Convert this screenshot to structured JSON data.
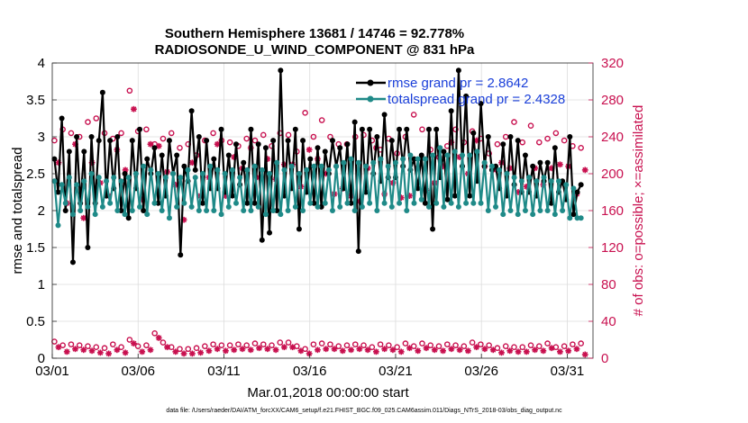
{
  "chart_data": {
    "type": "line",
    "title_line1": "Southern Hemisphere 13681 / 14746 = 92.778%",
    "title_line2": "RADIOSONDE_U_WIND_COMPONENT @ 831 hPa",
    "xlabel": "Mar.01,2018 00:00:00 start",
    "ylabel_left": "rmse and totalspread",
    "ylabel_right": "# of obs: o=possible; ×=assimilated",
    "xlim": [
      0,
      31.5
    ],
    "ylim_left": [
      0,
      4
    ],
    "ylim_right": [
      0,
      320
    ],
    "x_tick_values": [
      0,
      5,
      10,
      15,
      20,
      25,
      30
    ],
    "x_tick_labels": [
      "03/01",
      "03/06",
      "03/11",
      "03/16",
      "03/21",
      "03/26",
      "03/31"
    ],
    "y_left_ticks": [
      "0",
      "0.5",
      "1",
      "1.5",
      "2",
      "2.5",
      "3",
      "3.5",
      "4"
    ],
    "y_right_ticks": [
      "0",
      "40",
      "80",
      "120",
      "160",
      "200",
      "240",
      "280",
      "320"
    ],
    "series": [
      {
        "name": "rmse",
        "legend": "rmse grand pr = 2.8642",
        "color": "#000000",
        "values": [
          2.7,
          2.25,
          3.25,
          2.0,
          2.8,
          1.3,
          3.0,
          2.1,
          2.8,
          1.5,
          3.0,
          2.1,
          2.95,
          3.6,
          2.2,
          2.95,
          2.3,
          3.0,
          2.0,
          2.5,
          1.9,
          2.95,
          2.3,
          3.1,
          2.0,
          2.7,
          2.5,
          2.85,
          2.1,
          2.75,
          2.2,
          2.95,
          2.5,
          2.75,
          1.4,
          2.6,
          2.4,
          3.35,
          2.55,
          3.0,
          2.1,
          2.95,
          2.3,
          2.7,
          2.3,
          3.1,
          2.25,
          2.75,
          2.2,
          2.9,
          2.35,
          2.65,
          2.1,
          3.1,
          2.1,
          2.9,
          1.6,
          2.85,
          1.7,
          2.95,
          2.0,
          3.9,
          2.2,
          2.95,
          2.3,
          3.1,
          1.75,
          2.95,
          2.25,
          2.7,
          2.1,
          2.85,
          2.05,
          2.8,
          2.5,
          2.95,
          2.6,
          2.85,
          2.3,
          2.9,
          2.1,
          3.2,
          1.45,
          3.1,
          2.25,
          3.1,
          2.5,
          3.0,
          2.4,
          3.3,
          2.45,
          2.95,
          2.45,
          3.1,
          2.6,
          3.1,
          2.55,
          2.7,
          2.3,
          2.75,
          2.1,
          3.1,
          1.75,
          3.1,
          2.45,
          2.8,
          2.15,
          3.35,
          2.2,
          3.9,
          2.6,
          3.55,
          2.2,
          3.05,
          2.4,
          3.45,
          2.6,
          3.0,
          2.55,
          2.6,
          2.3,
          2.9,
          2.2,
          3.0,
          2.35,
          2.95,
          2.25,
          2.75,
          2.25,
          2.6,
          2.2,
          2.65,
          2.4,
          2.65,
          2.1,
          2.85,
          2.25,
          2.4,
          2.15,
          3.0,
          1.95,
          2.25,
          2.35
        ]
      },
      {
        "name": "totalspread",
        "legend": "totalspread grand pr = 2.4328",
        "color": "#1f8a88",
        "values": [
          2.4,
          1.8,
          2.35,
          2.1,
          2.45,
          1.95,
          2.35,
          2.0,
          2.4,
          2.05,
          2.5,
          1.95,
          2.45,
          2.05,
          2.4,
          2.1,
          2.45,
          2.0,
          2.4,
          1.95,
          2.45,
          2.0,
          2.5,
          2.05,
          2.6,
          1.95,
          2.55,
          2.1,
          2.5,
          2.0,
          2.45,
          1.9,
          2.5,
          2.05,
          2.45,
          2.1,
          2.55,
          2.05,
          2.45,
          2.0,
          2.5,
          2.0,
          2.6,
          2.0,
          2.55,
          1.95,
          2.5,
          2.05,
          2.55,
          2.1,
          2.45,
          2.0,
          2.55,
          2.0,
          2.6,
          2.05,
          2.55,
          1.95,
          2.5,
          2.0,
          2.65,
          1.95,
          2.55,
          2.0,
          2.6,
          2.05,
          2.5,
          2.0,
          2.55,
          2.1,
          2.6,
          2.05,
          2.6,
          2.1,
          2.55,
          2.0,
          2.6,
          2.05,
          2.65,
          2.1,
          2.7,
          2.0,
          2.65,
          2.05,
          2.6,
          2.1,
          2.65,
          2.0,
          2.7,
          2.1,
          2.6,
          2.05,
          2.65,
          2.1,
          2.7,
          2.0,
          2.75,
          2.1,
          2.7,
          2.15,
          2.7,
          2.05,
          2.75,
          2.1,
          2.85,
          2.05,
          2.75,
          2.1,
          2.8,
          2.05,
          2.75,
          2.1,
          2.75,
          2.1,
          2.8,
          2.1,
          2.65,
          2.0,
          2.6,
          2.05,
          2.55,
          1.95,
          2.5,
          2.0,
          2.45,
          1.95,
          2.4,
          2.0,
          2.45,
          1.95,
          2.4,
          2.0,
          2.45,
          2.0,
          2.4,
          1.95,
          2.4,
          2.0,
          2.35,
          1.9,
          2.3,
          1.9,
          1.9
        ]
      },
      {
        "name": "possible",
        "marker": "o",
        "color": "#c8104f",
        "axis": "right",
        "step": 4,
        "upper": [
          236,
          248,
          244,
          240,
          256,
          260,
          244,
          238,
          244,
          290,
          246,
          248,
          232,
          238,
          244,
          228,
          232,
          220,
          236,
          244,
          236,
          234,
          230,
          238,
          236,
          242,
          230,
          244,
          242,
          224,
          266,
          240,
          258,
          240,
          232,
          232,
          240,
          242,
          236,
          226,
          238,
          222,
          240,
          264,
          248,
          226,
          218,
          230,
          248,
          234,
          246,
          238,
          222,
          232,
          240,
          256,
          234,
          252,
          234,
          238,
          244,
          236,
          230,
          228
        ],
        "lower": [
          18,
          14,
          15,
          14,
          13,
          12,
          11,
          15,
          12,
          20,
          13,
          14,
          27,
          17,
          12,
          10,
          10,
          11,
          13,
          15,
          14,
          14,
          15,
          14,
          16,
          15,
          14,
          17,
          17,
          13,
          10,
          15,
          16,
          15,
          13,
          14,
          15,
          14,
          12,
          15,
          14,
          12,
          16,
          13,
          16,
          14,
          13,
          15,
          14,
          13,
          17,
          15,
          14,
          11,
          13,
          12,
          12,
          14,
          13,
          16,
          12,
          13,
          15,
          16
        ]
      },
      {
        "name": "assimilated",
        "marker": "*",
        "color": "#c8104f",
        "axis": "right",
        "step": 4,
        "upper": [
          212,
          168,
          232,
          152,
          212,
          190,
          176,
          226,
          204,
          270,
          172,
          232,
          230,
          202,
          188,
          150,
          212,
          176,
          196,
          232,
          176,
          218,
          206,
          228,
          196,
          216,
          194,
          210,
          210,
          186,
          226,
          216,
          200,
          178,
          184,
          176,
          170,
          206,
          228,
          178,
          190,
          174,
          176,
          206,
          182,
          190,
          208,
          234,
          218,
          200,
          236,
          208,
          204,
          212,
          206,
          180,
          186,
          206,
          188,
          206,
          210,
          208,
          178,
          204
        ],
        "lower": [
          12,
          7,
          10,
          9,
          8,
          6,
          5,
          9,
          6,
          16,
          7,
          9,
          22,
          12,
          7,
          5,
          5,
          6,
          8,
          10,
          8,
          9,
          10,
          9,
          11,
          10,
          9,
          12,
          12,
          8,
          5,
          9,
          10,
          10,
          8,
          9,
          10,
          9,
          7,
          10,
          9,
          7,
          11,
          8,
          11,
          9,
          8,
          10,
          9,
          8,
          12,
          10,
          9,
          6,
          8,
          7,
          7,
          9,
          8,
          11,
          7,
          8,
          10,
          4
        ]
      }
    ],
    "footer": "data file: /Users/raeder/DAI/ATM_forcXX/CAM6_setup/f.e21.FHIST_BGC.f09_025.CAM6assim.011/Diags_NTrS_2018-03/obs_diag_output.nc"
  }
}
